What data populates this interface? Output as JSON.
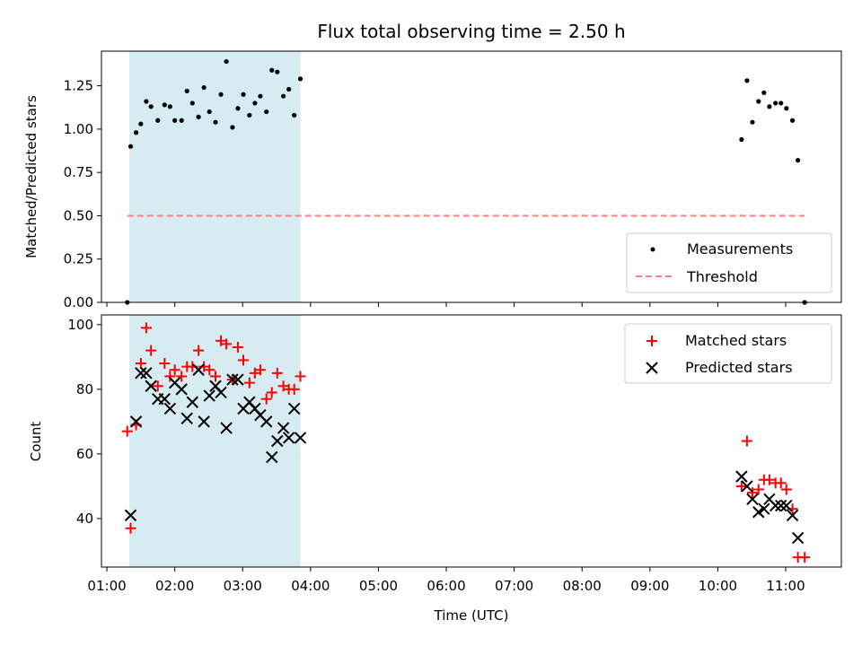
{
  "chart_data": [
    {
      "type": "scatter",
      "title": "Flux total observing time = 2.50 h",
      "xlabel": "",
      "ylabel": "Matched/Predicted stars",
      "xlim": [
        0.92,
        11.82
      ],
      "ylim": [
        0,
        1.45
      ],
      "yticks": [
        0.0,
        0.25,
        0.5,
        0.75,
        1.0,
        1.25
      ],
      "ytick_labels": [
        "0.00",
        "0.25",
        "0.50",
        "0.75",
        "1.00",
        "1.25"
      ],
      "shaded_span": [
        1.33,
        3.85
      ],
      "shade_color": "#add8e6",
      "threshold": {
        "name": "Threshold",
        "value": 0.5,
        "x_range": [
          1.3,
          11.28
        ],
        "color": "#ff7f7f"
      },
      "legend_position": "lower right",
      "series": [
        {
          "name": "Measurements",
          "color": "#000000",
          "marker": "dot",
          "x": [
            1.3,
            1.35,
            1.43,
            1.5,
            1.58,
            1.65,
            1.75,
            1.85,
            1.93,
            2.0,
            2.1,
            2.18,
            2.26,
            2.35,
            2.43,
            2.51,
            2.6,
            2.68,
            2.76,
            2.85,
            2.93,
            3.01,
            3.1,
            3.18,
            3.26,
            3.35,
            3.43,
            3.51,
            3.6,
            3.68,
            3.76,
            3.85,
            10.35,
            10.43,
            10.51,
            10.6,
            10.68,
            10.76,
            10.85,
            10.93,
            11.01,
            11.1,
            11.18,
            11.28
          ],
          "y": [
            0.0,
            0.9,
            0.98,
            1.03,
            1.16,
            1.13,
            1.05,
            1.14,
            1.13,
            1.05,
            1.05,
            1.22,
            1.15,
            1.07,
            1.24,
            1.1,
            1.04,
            1.2,
            1.39,
            1.01,
            1.12,
            1.2,
            1.08,
            1.15,
            1.19,
            1.1,
            1.34,
            1.33,
            1.19,
            1.23,
            1.08,
            1.29,
            0.94,
            1.28,
            1.04,
            1.16,
            1.21,
            1.13,
            1.15,
            1.15,
            1.12,
            1.05,
            0.82,
            0.0
          ]
        }
      ]
    },
    {
      "type": "scatter",
      "title": "",
      "xlabel": "Time (UTC)",
      "ylabel": "Count",
      "xlim": [
        0.92,
        11.82
      ],
      "ylim": [
        25,
        103
      ],
      "xticks": [
        1,
        2,
        3,
        4,
        5,
        6,
        7,
        8,
        9,
        10,
        11
      ],
      "xtick_labels": [
        "01:00",
        "02:00",
        "03:00",
        "04:00",
        "05:00",
        "06:00",
        "07:00",
        "08:00",
        "09:00",
        "10:00",
        "11:00"
      ],
      "yticks": [
        40,
        60,
        80,
        100
      ],
      "ytick_labels": [
        "40",
        "60",
        "80",
        "100"
      ],
      "shaded_span": [
        1.33,
        3.85
      ],
      "shade_color": "#add8e6",
      "legend_position": "upper right",
      "series": [
        {
          "name": "Matched stars",
          "color": "#ff0000",
          "marker": "plus",
          "x": [
            1.3,
            1.35,
            1.43,
            1.5,
            1.58,
            1.65,
            1.75,
            1.85,
            1.93,
            2.0,
            2.1,
            2.18,
            2.26,
            2.35,
            2.43,
            2.51,
            2.6,
            2.68,
            2.76,
            2.85,
            2.93,
            3.01,
            3.1,
            3.18,
            3.26,
            3.35,
            3.43,
            3.51,
            3.6,
            3.68,
            3.76,
            3.85,
            10.35,
            10.43,
            10.51,
            10.6,
            10.68,
            10.76,
            10.85,
            10.93,
            11.01,
            11.1,
            11.18,
            11.28
          ],
          "y": [
            67,
            37,
            69,
            88,
            99,
            92,
            81,
            88,
            84,
            86,
            84,
            87,
            87,
            92,
            87,
            86,
            84,
            95,
            94,
            83,
            93,
            89,
            82,
            85,
            86,
            77,
            79,
            85,
            81,
            80,
            80,
            84,
            50,
            64,
            48,
            49,
            52,
            52,
            51,
            51,
            49,
            43,
            28,
            28
          ]
        },
        {
          "name": "Predicted stars",
          "color": "#000000",
          "marker": "x",
          "x": [
            1.35,
            1.43,
            1.5,
            1.58,
            1.65,
            1.75,
            1.85,
            1.93,
            2.0,
            2.1,
            2.18,
            2.26,
            2.35,
            2.43,
            2.51,
            2.6,
            2.68,
            2.76,
            2.85,
            2.93,
            3.01,
            3.1,
            3.18,
            3.26,
            3.35,
            3.43,
            3.51,
            3.6,
            3.68,
            3.76,
            3.85,
            10.35,
            10.43,
            10.51,
            10.6,
            10.68,
            10.76,
            10.85,
            10.93,
            11.01,
            11.1,
            11.18
          ],
          "y": [
            41,
            70,
            85,
            85,
            81,
            77,
            77,
            74,
            82,
            80,
            71,
            76,
            86,
            70,
            78,
            81,
            79,
            68,
            83,
            83,
            74,
            76,
            74,
            72,
            70,
            59,
            64,
            68,
            65,
            74,
            65,
            53,
            50,
            46,
            42,
            43,
            46,
            44,
            44,
            44,
            41,
            34
          ]
        }
      ]
    }
  ]
}
